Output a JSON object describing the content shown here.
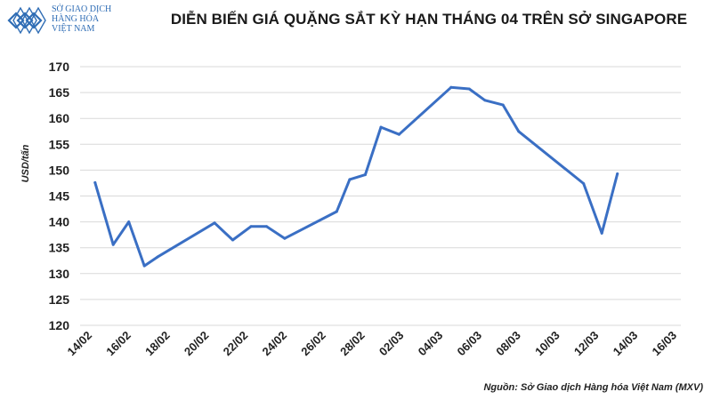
{
  "header": {
    "logo_lines": [
      "SỞ GIAO DỊCH",
      "HÀNG HÓA",
      "VIỆT NAM"
    ],
    "logo_icon": "diamond-pattern-logo",
    "brand_color": "#2f6db5"
  },
  "chart_data": {
    "type": "line",
    "title": "DIỄN BIẾN GIÁ QUẶNG SẮT KỲ HẠN THÁNG 04 TRÊN SỞ SINGAPORE",
    "xlabel": "",
    "ylabel": "USD/tấn",
    "ylim": [
      120,
      170
    ],
    "yticks": [
      120,
      125,
      130,
      135,
      140,
      145,
      150,
      155,
      160,
      165,
      170
    ],
    "xtick_labels": [
      "14/02",
      "16/02",
      "18/02",
      "20/02",
      "22/02",
      "24/02",
      "26/02",
      "28/02",
      "02/03",
      "04/03",
      "06/03",
      "08/03",
      "10/03",
      "12/03",
      "14/03",
      "16/03"
    ],
    "grid": true,
    "line_color": "#3a6fc4",
    "series": [
      {
        "values": [
          147.6,
          135.6,
          140.0,
          131.5,
          133.2,
          139.8,
          136.5,
          139.1,
          139.1,
          136.8,
          142.0,
          148.2,
          149.1,
          158.3,
          156.9,
          166.0,
          165.7,
          163.5,
          162.6,
          157.5,
          147.4,
          137.8,
          149.3
        ],
        "x_pos": [
          0.3,
          1.0,
          1.6,
          2.2,
          2.7,
          4.9,
          5.6,
          6.3,
          6.9,
          7.6,
          9.6,
          10.1,
          10.7,
          11.3,
          12.0,
          14.0,
          14.7,
          15.3,
          16.0,
          16.6,
          19.1,
          19.8,
          20.4
        ]
      }
    ],
    "source": "Nguồn: Sở Giao dịch Hàng hóa Việt Nam (MXV)"
  }
}
